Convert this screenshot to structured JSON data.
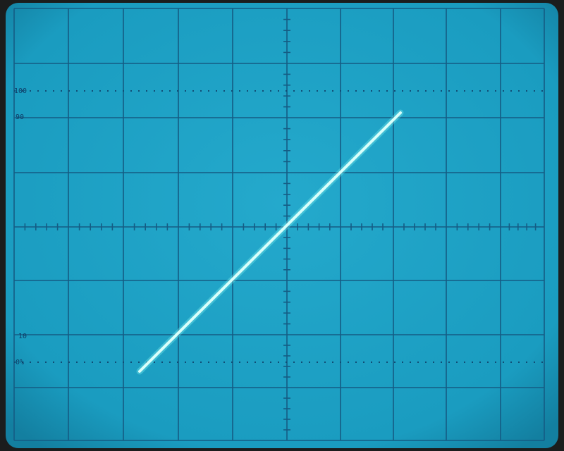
{
  "graticule_labels": {
    "top_dotted": "100",
    "upper": "90",
    "lower": "10",
    "bottom_dotted": "0%"
  }
}
